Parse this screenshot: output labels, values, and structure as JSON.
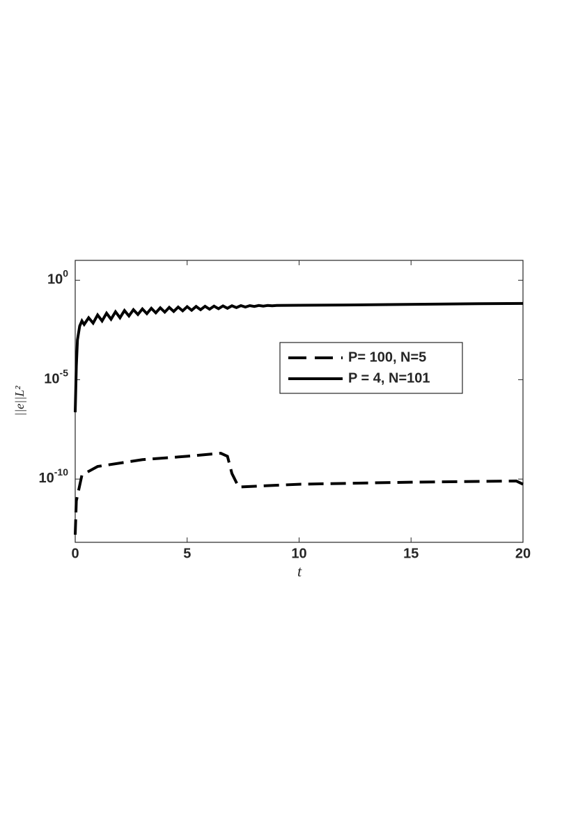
{
  "chart_data": {
    "type": "line",
    "xlabel": "t",
    "ylabel": "||e||L²",
    "xlim": [
      0,
      20
    ],
    "xticks": [
      0,
      5,
      10,
      15,
      20
    ],
    "ylim": [
      6.6e-14,
      10
    ],
    "yscale": "log",
    "yticks": [
      {
        "value": 1,
        "label": "10^0"
      },
      {
        "value": 1e-05,
        "label": "10^-5"
      },
      {
        "value": 1e-10,
        "label": "10^-10"
      }
    ],
    "legend": "center-right",
    "series": [
      {
        "name": "P= 100, N=5",
        "color": "#000000",
        "linestyle": "dashed",
        "x": [
          0,
          0.05,
          0.3,
          1,
          3,
          5,
          6.5,
          6.8,
          7.0,
          7.3,
          10,
          15,
          19.7,
          20
        ],
        "values": [
          1.6e-13,
          8e-12,
          1.6e-10,
          4.3e-10,
          9.5e-10,
          1.4e-09,
          2e-09,
          1.4e-09,
          1.9e-10,
          4e-11,
          5.5e-11,
          7e-11,
          8e-11,
          5.5e-11
        ]
      },
      {
        "name": "P = 4, N=101",
        "color": "#000000",
        "linestyle": "solid",
        "x": [
          0,
          0.05,
          0.1,
          0.2,
          0.3,
          0.4,
          0.6,
          0.8,
          1.0,
          1.2,
          1.4,
          1.6,
          1.8,
          2.0,
          2.2,
          2.4,
          2.6,
          2.8,
          3.0,
          3.2,
          3.4,
          3.6,
          3.8,
          4.0,
          4.2,
          4.4,
          4.6,
          4.8,
          5.0,
          5.2,
          5.4,
          5.6,
          5.8,
          6.0,
          6.2,
          6.4,
          6.6,
          6.8,
          7.0,
          7.2,
          7.4,
          7.6,
          7.8,
          8.0,
          8.2,
          8.4,
          8.6,
          8.8,
          9.0,
          10,
          12,
          14,
          16,
          18,
          20
        ],
        "values": [
          2.3e-07,
          5e-05,
          0.001,
          0.005,
          0.009,
          0.006,
          0.013,
          0.007,
          0.018,
          0.009,
          0.022,
          0.011,
          0.026,
          0.013,
          0.03,
          0.016,
          0.033,
          0.019,
          0.036,
          0.021,
          0.039,
          0.023,
          0.041,
          0.025,
          0.043,
          0.027,
          0.045,
          0.029,
          0.047,
          0.031,
          0.048,
          0.033,
          0.049,
          0.035,
          0.05,
          0.037,
          0.051,
          0.039,
          0.052,
          0.042,
          0.053,
          0.045,
          0.053,
          0.048,
          0.054,
          0.05,
          0.054,
          0.052,
          0.054,
          0.055,
          0.057,
          0.06,
          0.063,
          0.066,
          0.068
        ]
      }
    ]
  }
}
